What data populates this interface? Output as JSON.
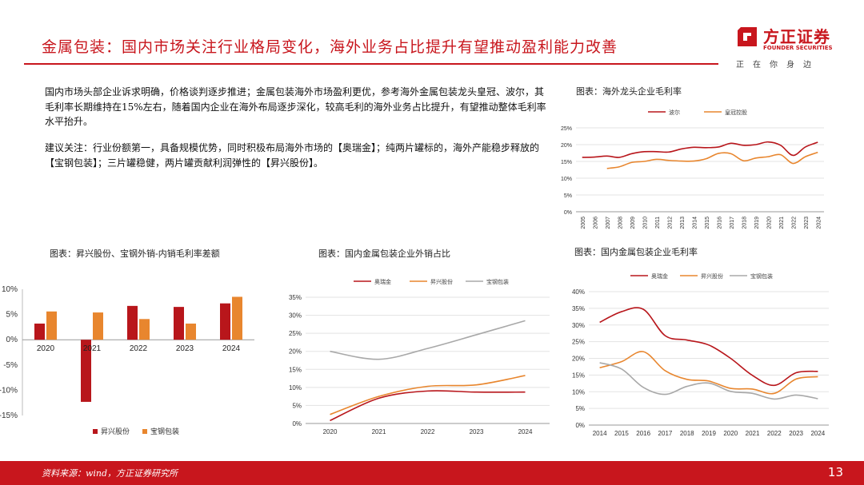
{
  "header": {
    "title": "金属包装：国内市场关注行业格局变化，海外业务占比提升有望推动盈利能力改善"
  },
  "logo": {
    "name_cn": "方正证券",
    "name_en": "FOUNDER SECURITIES",
    "slogan": "正在你身边"
  },
  "body": {
    "para1": "国内市场头部企业诉求明确，价格谈判逐步推进；金属包装海外市场盈利更优，参考海外金属包装龙头皇冠、波尔，其毛利率长期维持在15%左右，随着国内企业在海外布局逐步深化，较高毛利的海外业务占比提升，有望推动整体毛利率水平抬升。",
    "para2": "建议关注：行业份额第一，具备规模优势，同时积极布局海外市场的【奥瑞金】；纯两片罐标的，海外产能稳步释放的【宝钢包装】；三片罐稳健，两片罐贡献利润弹性的【昇兴股份】。"
  },
  "colors": {
    "brand": "#c8161d",
    "s1": "#b8161b",
    "s2": "#e8862e",
    "s3": "#a8a8a8"
  },
  "footer": {
    "source": "资料来源：wind，方正证券研究所",
    "page": "13"
  },
  "chart_data": [
    {
      "id": "overseas",
      "type": "line",
      "title": "图表：海外龙头企业毛利率",
      "x": [
        "2005",
        "2006",
        "2007",
        "2008",
        "2009",
        "2010",
        "2011",
        "2012",
        "2013",
        "2014",
        "2015",
        "2016",
        "2017",
        "2018",
        "2019",
        "2020",
        "2021",
        "2022",
        "2023",
        "2024"
      ],
      "series": [
        {
          "name": "波尔",
          "values": [
            16.2,
            16.3,
            16.6,
            16.2,
            17.3,
            17.9,
            17.9,
            17.8,
            18.7,
            19.2,
            19.1,
            19.3,
            20.4,
            19.8,
            20.0,
            20.8,
            19.8,
            16.8,
            19.3,
            20.7
          ]
        },
        {
          "name": "皇冠控股",
          "values": [
            null,
            null,
            12.9,
            13.4,
            14.7,
            15.0,
            15.6,
            15.3,
            15.1,
            15.1,
            15.8,
            17.4,
            17.3,
            15.2,
            16.0,
            16.4,
            17.0,
            14.4,
            16.4,
            17.7
          ]
        }
      ],
      "ylim": [
        0,
        25
      ],
      "yticks": [
        "0%",
        "5%",
        "10%",
        "15%",
        "20%",
        "25%"
      ],
      "legend": "top"
    },
    {
      "id": "gap",
      "type": "bar",
      "title": "图表：昇兴股份、宝钢外销-内销毛利率差额",
      "categories": [
        "2020",
        "2021",
        "2022",
        "2023",
        "2024"
      ],
      "series": [
        {
          "name": "昇兴股份",
          "values": [
            3.2,
            -12.3,
            6.7,
            6.5,
            7.2
          ]
        },
        {
          "name": "宝钢包装",
          "values": [
            5.6,
            5.4,
            4.1,
            3.2,
            8.5
          ]
        }
      ],
      "ylim": [
        -15,
        10
      ],
      "yticks": [
        "-15%",
        "-10%",
        "-5%",
        "0%",
        "5%",
        "10%"
      ],
      "legend": "bottom"
    },
    {
      "id": "export",
      "type": "line",
      "title": "图表：国内金属包装企业外销占比",
      "x": [
        "2020",
        "2021",
        "2022",
        "2023",
        "2024"
      ],
      "series": [
        {
          "name": "奥瑞金",
          "values": [
            0.8,
            7.0,
            9.0,
            8.7,
            8.7
          ]
        },
        {
          "name": "昇兴股份",
          "values": [
            2.5,
            7.5,
            10.3,
            10.7,
            13.3
          ]
        },
        {
          "name": "宝钢包装",
          "values": [
            20.0,
            17.8,
            20.8,
            24.6,
            28.5
          ]
        }
      ],
      "ylim": [
        0,
        35
      ],
      "yticks": [
        "0%",
        "5%",
        "10%",
        "15%",
        "20%",
        "25%",
        "30%",
        "35%"
      ],
      "legend": "top"
    },
    {
      "id": "domestic",
      "type": "line",
      "title": "图表：国内金属包装企业毛利率",
      "x": [
        "2014",
        "2015",
        "2016",
        "2017",
        "2018",
        "2019",
        "2020",
        "2021",
        "2022",
        "2023",
        "2024"
      ],
      "series": [
        {
          "name": "奥瑞金",
          "values": [
            30.8,
            34.0,
            34.7,
            26.8,
            25.5,
            24.0,
            20.0,
            14.9,
            11.9,
            15.7,
            16.1
          ]
        },
        {
          "name": "昇兴股份",
          "values": [
            17.2,
            19.0,
            22.0,
            16.3,
            13.7,
            13.2,
            11.0,
            10.8,
            9.5,
            13.8,
            14.5
          ]
        },
        {
          "name": "宝钢包装",
          "values": [
            18.7,
            16.8,
            11.3,
            9.2,
            11.6,
            12.6,
            10.1,
            9.5,
            7.8,
            9.0,
            7.9
          ]
        }
      ],
      "ylim": [
        0,
        40
      ],
      "yticks": [
        "0%",
        "5%",
        "10%",
        "15%",
        "20%",
        "25%",
        "30%",
        "35%",
        "40%"
      ],
      "legend": "top"
    }
  ]
}
